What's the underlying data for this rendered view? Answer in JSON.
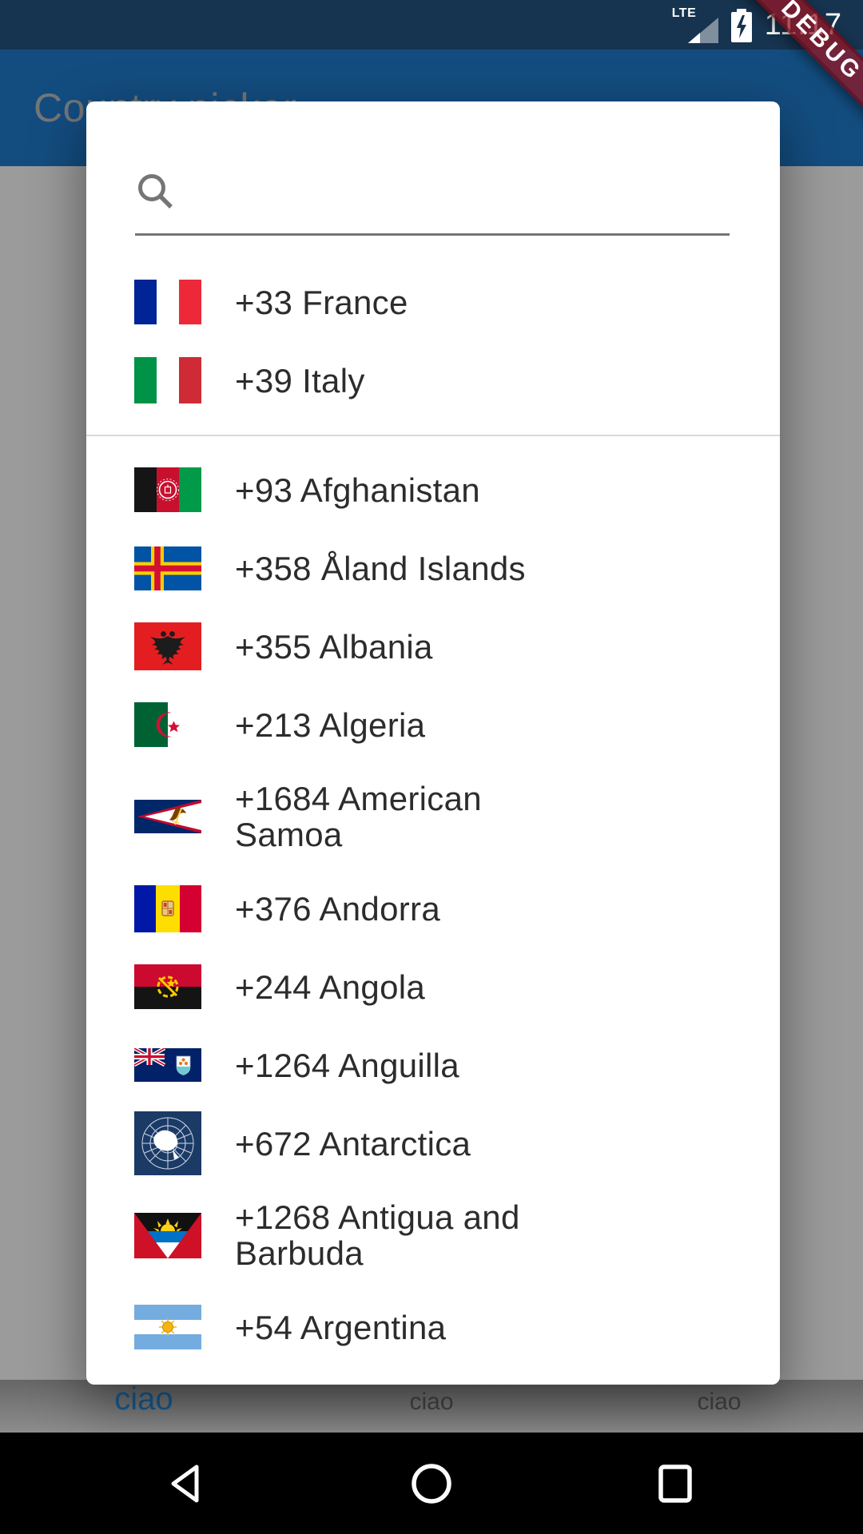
{
  "status_bar": {
    "network": "LTE",
    "time": "11:17"
  },
  "app_bar": {
    "title": "Country picker"
  },
  "debug_banner": {
    "label": "DEBUG"
  },
  "dialog": {
    "search": {
      "value": ""
    },
    "favorites": [
      {
        "name": "France",
        "dial_code": "+33",
        "flag": "fr",
        "lines": [
          "+33 France"
        ]
      },
      {
        "name": "Italy",
        "dial_code": "+39",
        "flag": "it",
        "lines": [
          "+39 Italy"
        ]
      }
    ],
    "countries": [
      {
        "name": "Afghanistan",
        "dial_code": "+93",
        "flag": "af",
        "lines": [
          "+93 Afghanistan"
        ]
      },
      {
        "name": "Aland Islands",
        "dial_code": "+358",
        "flag": "ax",
        "lines": [
          "+358 Åland Islands"
        ]
      },
      {
        "name": "Albania",
        "dial_code": "+355",
        "flag": "al",
        "lines": [
          "+355 Albania"
        ]
      },
      {
        "name": "Algeria",
        "dial_code": "+213",
        "flag": "dz",
        "lines": [
          "+213 Algeria"
        ]
      },
      {
        "name": "American Samoa",
        "dial_code": "+1684",
        "flag": "as",
        "lines": [
          "+1684 American",
          "Samoa"
        ]
      },
      {
        "name": "Andorra",
        "dial_code": "+376",
        "flag": "ad",
        "lines": [
          "+376 Andorra"
        ]
      },
      {
        "name": "Angola",
        "dial_code": "+244",
        "flag": "ao",
        "lines": [
          "+244 Angola"
        ]
      },
      {
        "name": "Anguilla",
        "dial_code": "+1264",
        "flag": "ai",
        "lines": [
          "+1264 Anguilla"
        ]
      },
      {
        "name": "Antarctica",
        "dial_code": "+672",
        "flag": "aq",
        "lines": [
          "+672 Antarctica"
        ]
      },
      {
        "name": "Antigua and Barbuda",
        "dial_code": "+1268",
        "flag": "ag",
        "lines": [
          "+1268 Antigua and",
          "Barbuda"
        ]
      },
      {
        "name": "Argentina",
        "dial_code": "+54",
        "flag": "ar",
        "lines": [
          "+54 Argentina"
        ]
      }
    ]
  },
  "bottom_tabs": [
    {
      "label": "ciao",
      "selected": true
    },
    {
      "label": "ciao",
      "selected": false
    },
    {
      "label": "ciao",
      "selected": false
    }
  ],
  "colors": {
    "status_bar": "#16334f",
    "app_bar": "#134d80",
    "scrim_background": "#9b9b9b",
    "debug_banner_red": "#8f2030",
    "selected_tab_blue": "#145d96",
    "unselected_tab_grey": "#454545",
    "list_text": "#2c2c2c",
    "dialog_background": "#ffffff",
    "nav_bar": "#000000"
  }
}
